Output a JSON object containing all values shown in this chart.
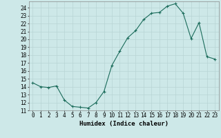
{
  "x": [
    0,
    1,
    2,
    3,
    4,
    5,
    6,
    7,
    8,
    9,
    10,
    11,
    12,
    13,
    14,
    15,
    16,
    17,
    18,
    19,
    20,
    21,
    22,
    23
  ],
  "y": [
    14.5,
    14.0,
    13.9,
    14.1,
    12.3,
    11.5,
    11.4,
    11.3,
    12.0,
    13.4,
    16.7,
    18.5,
    20.2,
    21.1,
    22.5,
    23.3,
    23.4,
    24.2,
    24.5,
    23.3,
    20.1,
    22.1,
    17.8,
    17.5
  ],
  "xlabel": "Humidex (Indice chaleur)",
  "xlim": [
    -0.5,
    23.5
  ],
  "ylim": [
    11,
    24.8
  ],
  "yticks": [
    11,
    12,
    13,
    14,
    15,
    16,
    17,
    18,
    19,
    20,
    21,
    22,
    23,
    24
  ],
  "xticks": [
    0,
    1,
    2,
    3,
    4,
    5,
    6,
    7,
    8,
    9,
    10,
    11,
    12,
    13,
    14,
    15,
    16,
    17,
    18,
    19,
    20,
    21,
    22,
    23
  ],
  "line_color": "#1a6b5a",
  "marker": "+",
  "marker_size": 3,
  "bg_color": "#cde8e8",
  "grid_color": "#b8d4d4",
  "tick_fontsize": 5.5,
  "xlabel_fontsize": 6.5
}
